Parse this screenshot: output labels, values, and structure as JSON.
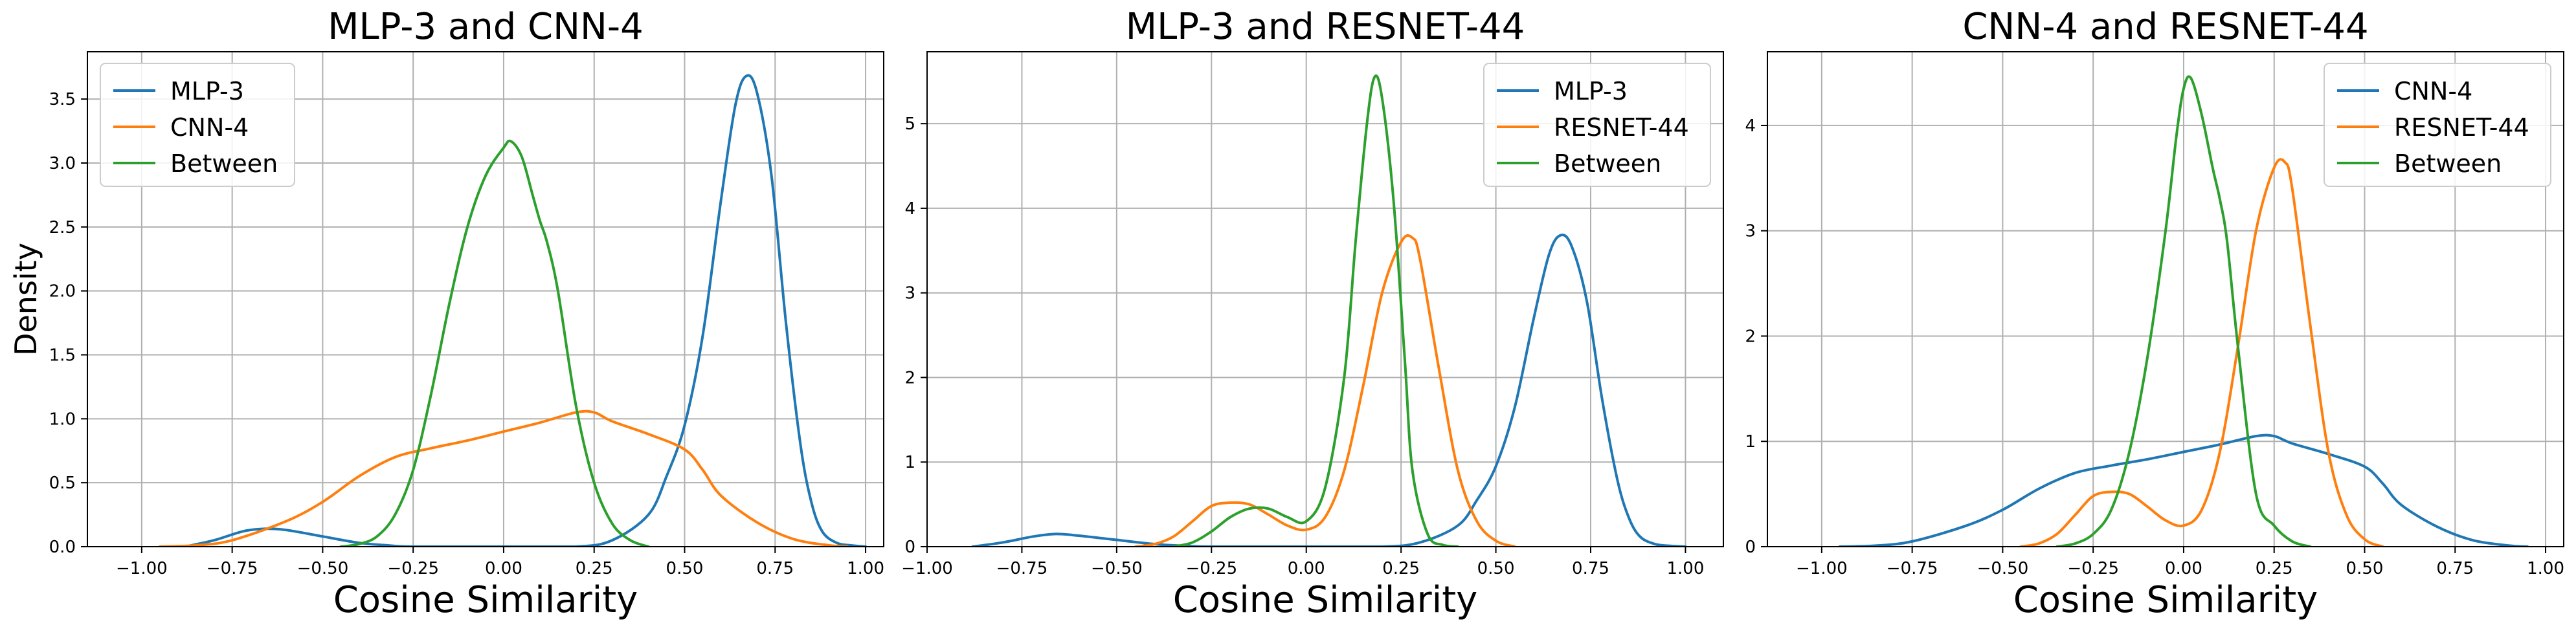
{
  "colors": {
    "blue": "#1f77b4",
    "orange": "#ff7f0e",
    "green": "#2ca02c",
    "grid": "#b0b0b0"
  },
  "chart_data": [
    {
      "type": "line",
      "title": "MLP-3 and CNN-4",
      "xlabel": "Cosine Similarity",
      "ylabel": "Density",
      "xlim": [
        -1.15,
        1.05
      ],
      "ylim": [
        0,
        3.87
      ],
      "xticks": [
        -1.0,
        -0.75,
        -0.5,
        -0.25,
        0.0,
        0.25,
        0.5,
        0.75,
        1.0
      ],
      "xtick_labels": [
        "−1.00",
        "−0.75",
        "−0.50",
        "−0.25",
        "0.00",
        "0.25",
        "0.50",
        "0.75",
        "1.00"
      ],
      "yticks": [
        0,
        0.5,
        1.0,
        1.5,
        2.0,
        2.5,
        3.0,
        3.5
      ],
      "ytick_labels": [
        "0.0",
        "0.5",
        "1.0",
        "1.5",
        "2.0",
        "2.5",
        "3.0",
        "3.5"
      ],
      "grid": true,
      "legend_position": "top-left",
      "series": [
        {
          "name": "MLP-3",
          "color": "#1f77b4",
          "x": [
            -0.88,
            -0.8,
            -0.72,
            -0.66,
            -0.6,
            -0.5,
            -0.4,
            -0.32,
            -0.25,
            0.0,
            0.2,
            0.3,
            0.4,
            0.45,
            0.5,
            0.55,
            0.6,
            0.64,
            0.67,
            0.7,
            0.74,
            0.78,
            0.82,
            0.85,
            0.88,
            0.92,
            0.96,
            1.0
          ],
          "y": [
            0.0,
            0.05,
            0.12,
            0.14,
            0.13,
            0.08,
            0.03,
            0.01,
            0.0,
            0.0,
            0.0,
            0.05,
            0.25,
            0.55,
            0.95,
            1.65,
            2.7,
            3.45,
            3.68,
            3.55,
            2.9,
            1.75,
            0.8,
            0.35,
            0.12,
            0.03,
            0.01,
            0.0
          ]
        },
        {
          "name": "CNN-4",
          "color": "#ff7f0e",
          "x": [
            -0.95,
            -0.85,
            -0.75,
            -0.6,
            -0.5,
            -0.4,
            -0.3,
            -0.2,
            -0.1,
            0.0,
            0.1,
            0.2,
            0.25,
            0.3,
            0.4,
            0.5,
            0.55,
            0.6,
            0.7,
            0.8,
            0.9,
            0.95
          ],
          "y": [
            0.0,
            0.01,
            0.05,
            0.2,
            0.35,
            0.55,
            0.7,
            0.77,
            0.83,
            0.9,
            0.97,
            1.05,
            1.05,
            0.98,
            0.88,
            0.76,
            0.6,
            0.4,
            0.19,
            0.06,
            0.01,
            0.0
          ]
        },
        {
          "name": "Between",
          "color": "#2ca02c",
          "x": [
            -0.45,
            -0.4,
            -0.35,
            -0.3,
            -0.25,
            -0.2,
            -0.15,
            -0.1,
            -0.05,
            0.0,
            0.02,
            0.05,
            0.08,
            0.1,
            0.12,
            0.15,
            0.2,
            0.25,
            0.3,
            0.35,
            0.4
          ],
          "y": [
            0.0,
            0.02,
            0.08,
            0.25,
            0.6,
            1.2,
            1.9,
            2.5,
            2.9,
            3.12,
            3.17,
            3.05,
            2.75,
            2.55,
            2.38,
            2.0,
            1.1,
            0.5,
            0.18,
            0.05,
            0.0
          ]
        }
      ]
    },
    {
      "type": "line",
      "title": "MLP-3 and RESNET-44",
      "xlabel": "Cosine Similarity",
      "ylabel": "",
      "xlim": [
        -1.0,
        1.1
      ],
      "ylim": [
        0,
        5.85
      ],
      "xticks": [
        -1.0,
        -0.75,
        -0.5,
        -0.25,
        0.0,
        0.25,
        0.5,
        0.75,
        1.0
      ],
      "xtick_labels": [
        "−1.00",
        "−0.75",
        "−0.50",
        "−0.25",
        "0.00",
        "0.25",
        "0.50",
        "0.75",
        "1.00"
      ],
      "yticks": [
        0,
        1,
        2,
        3,
        4,
        5
      ],
      "ytick_labels": [
        "0",
        "1",
        "2",
        "3",
        "4",
        "5"
      ],
      "grid": true,
      "legend_position": "top-right",
      "series": [
        {
          "name": "MLP-3",
          "color": "#1f77b4",
          "x": [
            -0.88,
            -0.8,
            -0.72,
            -0.66,
            -0.6,
            -0.5,
            -0.4,
            -0.32,
            -0.25,
            0.0,
            0.2,
            0.3,
            0.4,
            0.45,
            0.5,
            0.55,
            0.6,
            0.64,
            0.67,
            0.7,
            0.74,
            0.78,
            0.82,
            0.85,
            0.88,
            0.92,
            0.96,
            1.0
          ],
          "y": [
            0.0,
            0.05,
            0.12,
            0.15,
            0.13,
            0.08,
            0.03,
            0.01,
            0.0,
            0.0,
            0.0,
            0.05,
            0.25,
            0.55,
            0.95,
            1.65,
            2.7,
            3.45,
            3.68,
            3.55,
            2.9,
            1.75,
            0.8,
            0.35,
            0.12,
            0.03,
            0.01,
            0.0
          ]
        },
        {
          "name": "RESNET-44",
          "color": "#ff7f0e",
          "x": [
            -0.45,
            -0.4,
            -0.35,
            -0.3,
            -0.25,
            -0.2,
            -0.15,
            -0.1,
            -0.05,
            0.0,
            0.05,
            0.1,
            0.15,
            0.2,
            0.25,
            0.28,
            0.3,
            0.35,
            0.4,
            0.45,
            0.5,
            0.55
          ],
          "y": [
            0.0,
            0.03,
            0.12,
            0.3,
            0.48,
            0.52,
            0.5,
            0.38,
            0.25,
            0.2,
            0.35,
            0.9,
            1.9,
            3.0,
            3.6,
            3.65,
            3.4,
            2.1,
            0.9,
            0.3,
            0.07,
            0.0
          ]
        },
        {
          "name": "Between",
          "color": "#2ca02c",
          "x": [
            -0.35,
            -0.3,
            -0.25,
            -0.2,
            -0.15,
            -0.1,
            -0.05,
            0.0,
            0.05,
            0.1,
            0.13,
            0.16,
            0.18,
            0.2,
            0.23,
            0.26,
            0.28,
            0.32,
            0.36,
            0.4
          ],
          "y": [
            0.0,
            0.05,
            0.18,
            0.35,
            0.45,
            0.45,
            0.35,
            0.3,
            0.7,
            2.0,
            3.6,
            5.0,
            5.55,
            5.3,
            4.1,
            2.2,
            0.9,
            0.15,
            0.02,
            0.0
          ]
        }
      ]
    },
    {
      "type": "line",
      "title": "CNN-4 and RESNET-44",
      "xlabel": "Cosine Similarity",
      "ylabel": "",
      "xlim": [
        -1.15,
        1.05
      ],
      "ylim": [
        0,
        4.7
      ],
      "xticks": [
        -1.0,
        -0.75,
        -0.5,
        -0.25,
        0.0,
        0.25,
        0.5,
        0.75,
        1.0
      ],
      "xtick_labels": [
        "−1.00",
        "−0.75",
        "−0.50",
        "−0.25",
        "0.00",
        "0.25",
        "0.50",
        "0.75",
        "1.00"
      ],
      "yticks": [
        0,
        1,
        2,
        3,
        4
      ],
      "ytick_labels": [
        "0",
        "1",
        "2",
        "3",
        "4"
      ],
      "grid": true,
      "legend_position": "top-right",
      "series": [
        {
          "name": "CNN-4",
          "color": "#1f77b4",
          "x": [
            -0.95,
            -0.85,
            -0.75,
            -0.6,
            -0.5,
            -0.4,
            -0.3,
            -0.2,
            -0.1,
            0.0,
            0.1,
            0.2,
            0.25,
            0.3,
            0.4,
            0.5,
            0.55,
            0.6,
            0.7,
            0.8,
            0.9,
            0.95
          ],
          "y": [
            0.0,
            0.01,
            0.05,
            0.2,
            0.35,
            0.55,
            0.7,
            0.77,
            0.83,
            0.9,
            0.97,
            1.05,
            1.05,
            0.98,
            0.88,
            0.76,
            0.6,
            0.4,
            0.19,
            0.06,
            0.01,
            0.0
          ]
        },
        {
          "name": "RESNET-44",
          "color": "#ff7f0e",
          "x": [
            -0.45,
            -0.4,
            -0.35,
            -0.3,
            -0.25,
            -0.2,
            -0.15,
            -0.1,
            -0.05,
            0.0,
            0.05,
            0.1,
            0.15,
            0.2,
            0.25,
            0.28,
            0.3,
            0.35,
            0.4,
            0.45,
            0.5,
            0.55
          ],
          "y": [
            0.0,
            0.03,
            0.12,
            0.3,
            0.48,
            0.52,
            0.5,
            0.38,
            0.25,
            0.2,
            0.35,
            0.9,
            1.9,
            3.0,
            3.6,
            3.65,
            3.4,
            2.1,
            0.9,
            0.3,
            0.07,
            0.0
          ]
        },
        {
          "name": "Between",
          "color": "#2ca02c",
          "x": [
            -0.35,
            -0.3,
            -0.25,
            -0.2,
            -0.15,
            -0.1,
            -0.05,
            -0.02,
            0.0,
            0.02,
            0.05,
            0.08,
            0.1,
            0.12,
            0.15,
            0.2,
            0.25,
            0.3,
            0.35
          ],
          "y": [
            0.0,
            0.03,
            0.12,
            0.35,
            0.9,
            1.8,
            3.0,
            3.9,
            4.35,
            4.45,
            4.1,
            3.6,
            3.3,
            2.9,
            1.9,
            0.5,
            0.2,
            0.05,
            0.0
          ]
        }
      ]
    }
  ]
}
